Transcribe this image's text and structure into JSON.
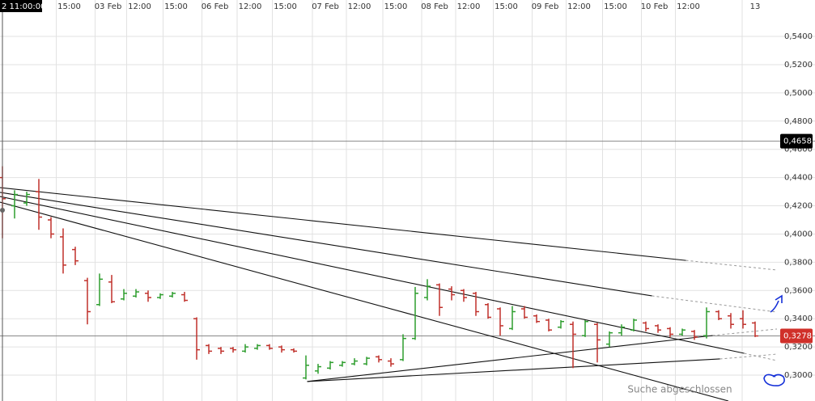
{
  "chart_data": {
    "type": "ohlc",
    "crosshair_label": "2 11:00:00",
    "watermark": "Suche abgeschlossen",
    "up_color": "#2e9e2e",
    "down_color": "#c0302a",
    "open": [
      0.44,
      0.42,
      0.422,
      0.43,
      0.41,
      0.398,
      0.389,
      0.367,
      0.35,
      0.366,
      0.354,
      0.356,
      0.358,
      0.355,
      0.356,
      0.357,
      0.34,
      0.321,
      0.319,
      0.319,
      0.317,
      0.319,
      0.321,
      0.32,
      0.318,
      0.298,
      0.303,
      0.305,
      0.307,
      0.308,
      0.308,
      0.313,
      0.31,
      0.311,
      0.326,
      0.355,
      0.364,
      0.361,
      0.36,
      0.358,
      0.35,
      0.347,
      0.333,
      0.347,
      0.342,
      0.339,
      0.334,
      0.336,
      0.328,
      0.336,
      0.322,
      0.33,
      0.332,
      0.337,
      0.335,
      0.333,
      0.329,
      0.331,
      0.328,
      0.345,
      0.342,
      0.34,
      0.337
    ],
    "high": [
      0.448,
      0.431,
      0.43,
      0.439,
      0.412,
      0.404,
      0.391,
      0.369,
      0.372,
      0.371,
      0.361,
      0.361,
      0.36,
      0.358,
      0.359,
      0.359,
      0.341,
      0.322,
      0.32,
      0.32,
      0.322,
      0.322,
      0.322,
      0.321,
      0.319,
      0.314,
      0.308,
      0.31,
      0.31,
      0.312,
      0.313,
      0.314,
      0.312,
      0.329,
      0.3625,
      0.368,
      0.365,
      0.363,
      0.361,
      0.359,
      0.351,
      0.348,
      0.349,
      0.349,
      0.343,
      0.34,
      0.339,
      0.338,
      0.339,
      0.337,
      0.331,
      0.336,
      0.34,
      0.338,
      0.336,
      0.334,
      0.333,
      0.332,
      0.348,
      0.346,
      0.344,
      0.346,
      0.338
    ],
    "low": [
      0.397,
      0.411,
      0.42,
      0.403,
      0.397,
      0.372,
      0.378,
      0.336,
      0.349,
      0.351,
      0.353,
      0.355,
      0.352,
      0.354,
      0.355,
      0.352,
      0.311,
      0.315,
      0.315,
      0.316,
      0.316,
      0.318,
      0.318,
      0.316,
      0.316,
      0.297,
      0.301,
      0.304,
      0.306,
      0.307,
      0.307,
      0.309,
      0.306,
      0.31,
      0.325,
      0.353,
      0.342,
      0.353,
      0.352,
      0.342,
      0.34,
      0.328,
      0.332,
      0.34,
      0.337,
      0.331,
      0.333,
      0.305,
      0.327,
      0.309,
      0.32,
      0.328,
      0.331,
      0.331,
      0.33,
      0.327,
      0.328,
      0.325,
      0.326,
      0.339,
      0.333,
      0.333,
      0.327
    ],
    "close": [
      0.425,
      0.428,
      0.428,
      0.412,
      0.4,
      0.378,
      0.381,
      0.345,
      0.368,
      0.352,
      0.358,
      0.359,
      0.355,
      0.357,
      0.358,
      0.353,
      0.318,
      0.317,
      0.317,
      0.318,
      0.32,
      0.321,
      0.319,
      0.318,
      0.317,
      0.307,
      0.306,
      0.309,
      0.309,
      0.31,
      0.312,
      0.311,
      0.308,
      0.326,
      0.358,
      0.363,
      0.348,
      0.357,
      0.355,
      0.345,
      0.341,
      0.335,
      0.345,
      0.341,
      0.338,
      0.332,
      0.338,
      0.329,
      0.338,
      0.325,
      0.33,
      0.334,
      0.339,
      0.333,
      0.332,
      0.329,
      0.332,
      0.327,
      0.345,
      0.34,
      0.336,
      0.336,
      0.3278
    ],
    "xlim": [
      -0.2,
      63.8
    ],
    "xticks": [
      {
        "value": 5.5,
        "label": "15:00"
      },
      {
        "value": 8.7,
        "label": "03 Feb"
      },
      {
        "value": 11.3,
        "label": "12:00"
      },
      {
        "value": 14.3,
        "label": "15:00"
      },
      {
        "value": 17.5,
        "label": "06 Feb"
      },
      {
        "value": 20.4,
        "label": "12:00"
      },
      {
        "value": 23.3,
        "label": "15:00"
      },
      {
        "value": 26.6,
        "label": "07 Feb"
      },
      {
        "value": 29.4,
        "label": "12:00"
      },
      {
        "value": 32.4,
        "label": "15:00"
      },
      {
        "value": 35.6,
        "label": "08 Feb"
      },
      {
        "value": 38.4,
        "label": "12:00"
      },
      {
        "value": 41.5,
        "label": "15:00"
      },
      {
        "value": 44.7,
        "label": "09 Feb"
      },
      {
        "value": 47.5,
        "label": "12:00"
      },
      {
        "value": 50.5,
        "label": "15:00"
      },
      {
        "value": 53.7,
        "label": "10 Feb"
      },
      {
        "value": 56.5,
        "label": "12:00"
      },
      {
        "value": 62,
        "label": "13"
      }
    ],
    "ylim": [
      0.2817,
      0.5658
    ],
    "yticks": [
      {
        "value": 0.3,
        "label": "0,3000"
      },
      {
        "value": 0.32,
        "label": "0,3200"
      },
      {
        "value": 0.34,
        "label": "0,3400"
      },
      {
        "value": 0.36,
        "label": "0,3600"
      },
      {
        "value": 0.38,
        "label": "0,3800"
      },
      {
        "value": 0.4,
        "label": "0,4000"
      },
      {
        "value": 0.42,
        "label": "0,4200"
      },
      {
        "value": 0.44,
        "label": "0,4400"
      },
      {
        "value": 0.46,
        "label": "0,4600"
      },
      {
        "value": 0.48,
        "label": "0,4800"
      },
      {
        "value": 0.5,
        "label": "0,5000"
      },
      {
        "value": 0.52,
        "label": "0,5200"
      },
      {
        "value": 0.54,
        "label": "0,5400"
      }
    ],
    "grid": true,
    "price_lines": [
      {
        "value": 0.4658,
        "label": "0,4658",
        "color": "#000000"
      },
      {
        "value": 0.3278,
        "label": "0,3278",
        "color": "#d0302a"
      }
    ],
    "trendlines": [
      {
        "x": [
          -0.2,
          56.3,
          63.8
        ],
        "y": [
          0.4329,
          0.3813,
          0.3745
        ]
      },
      {
        "x": [
          -0.2,
          53.5,
          63.8
        ],
        "y": [
          0.4295,
          0.3562,
          0.3447
        ]
      },
      {
        "x": [
          -0.2,
          61.1,
          63.8
        ],
        "y": [
          0.4266,
          0.3155,
          0.3103
        ]
      },
      {
        "x": [
          -0.2,
          59.8
        ],
        "y": [
          0.4226,
          0.2817
        ]
      },
      {
        "x": [
          25.1,
          58.5,
          63.8
        ],
        "y": [
          0.2955,
          0.3281,
          0.3327
        ]
      },
      {
        "x": [
          25.1,
          59.1,
          63.8
        ],
        "y": [
          0.2955,
          0.3115,
          0.3149
        ]
      }
    ]
  }
}
